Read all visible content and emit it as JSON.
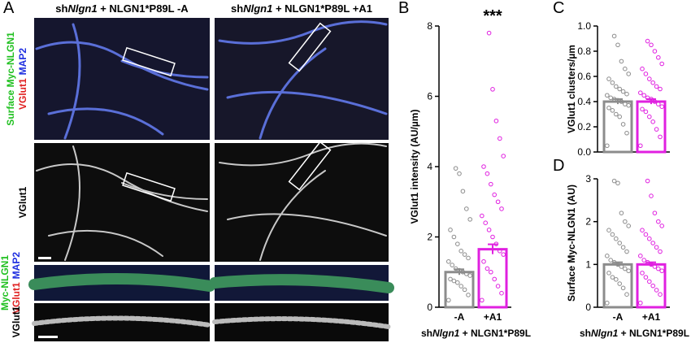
{
  "panels": [
    "A",
    "B",
    "C",
    "D"
  ],
  "column_headers": [
    {
      "prefix": "sh",
      "gene": "Nlgn1",
      "suffix": " + NLGN1*P89L -A"
    },
    {
      "prefix": "sh",
      "gene": "Nlgn1",
      "suffix": " + NLGN1*P89L +A1"
    }
  ],
  "row_labels": [
    [
      "Surface Myc-NLGN1",
      "VGlut1",
      "MAP2"
    ],
    [
      "VGlut1"
    ],
    [
      "Myc-NLGN1",
      "VGlut1",
      "MAP2"
    ],
    [
      "VGlut1"
    ]
  ],
  "chart_data": [
    {
      "type": "bar",
      "y_label": "VGlut1 intensity (AU/µm)",
      "annotation": "***",
      "categories": [
        "-A",
        "+A1"
      ],
      "x_label": {
        "prefix": "sh",
        "gene": "Nlgn1",
        "suffix": " + NLGN1*P89L"
      },
      "values": [
        1.0,
        1.65
      ],
      "errors": [
        0.08,
        0.14
      ],
      "colors": [
        "#8c8c8c",
        "#e020e0"
      ],
      "points": [
        [
          0.2,
          0.35,
          0.5,
          0.6,
          0.7,
          0.75,
          0.8,
          0.9,
          0.95,
          1.0,
          1.05,
          1.1,
          1.2,
          1.3,
          1.4,
          1.5,
          1.6,
          1.8,
          2.0,
          2.2,
          2.5,
          2.8,
          3.3,
          3.8,
          3.95
        ],
        [
          0.2,
          0.4,
          0.6,
          0.8,
          1.0,
          1.1,
          1.3,
          1.5,
          1.6,
          1.8,
          2.0,
          2.2,
          2.4,
          2.6,
          2.8,
          3.0,
          3.2,
          3.5,
          3.8,
          4.0,
          4.3,
          4.8,
          5.3,
          6.2,
          7.8
        ]
      ],
      "ylim": [
        0,
        8
      ],
      "yticks": [
        0,
        2,
        4,
        6,
        8
      ]
    },
    {
      "type": "bar",
      "y_label": "VGlut1 clusters/µm",
      "values": [
        0.4,
        0.4
      ],
      "errors": [
        0.02,
        0.02
      ],
      "colors": [
        "#8c8c8c",
        "#e020e0"
      ],
      "points": [
        [
          0.05,
          0.15,
          0.22,
          0.28,
          0.3,
          0.33,
          0.35,
          0.37,
          0.38,
          0.4,
          0.41,
          0.42,
          0.43,
          0.45,
          0.46,
          0.48,
          0.5,
          0.52,
          0.55,
          0.58,
          0.62,
          0.66,
          0.72,
          0.85,
          0.92
        ],
        [
          0.05,
          0.12,
          0.18,
          0.24,
          0.28,
          0.32,
          0.34,
          0.36,
          0.38,
          0.4,
          0.42,
          0.43,
          0.45,
          0.47,
          0.5,
          0.52,
          0.55,
          0.58,
          0.62,
          0.66,
          0.7,
          0.75,
          0.8,
          0.85,
          0.88
        ]
      ],
      "ylim": [
        0,
        1
      ],
      "yticks": [
        {
          "value": 0,
          "label": "0.0"
        },
        0.2,
        0.4,
        0.6,
        0.8,
        {
          "value": 1,
          "label": "1.0"
        }
      ]
    },
    {
      "type": "bar",
      "y_label": "Surface Myc-NLGN1 (AU)",
      "categories": [
        "-A",
        "+A1"
      ],
      "x_label": {
        "prefix": "sh",
        "gene": "Nlgn1",
        "suffix": " + NLGN1*P89L"
      },
      "values": [
        1.0,
        1.0
      ],
      "errors": [
        0.05,
        0.05
      ],
      "colors": [
        "#8c8c8c",
        "#e020e0"
      ],
      "points": [
        [
          0.1,
          0.3,
          0.45,
          0.55,
          0.65,
          0.7,
          0.8,
          0.85,
          0.9,
          0.95,
          1.0,
          1.05,
          1.1,
          1.2,
          1.3,
          1.4,
          1.5,
          1.6,
          1.7,
          1.8,
          1.9,
          2.0,
          2.2,
          2.9,
          2.95
        ],
        [
          0.1,
          0.3,
          0.4,
          0.5,
          0.6,
          0.7,
          0.8,
          0.85,
          0.9,
          0.95,
          1.0,
          1.05,
          1.1,
          1.2,
          1.3,
          1.4,
          1.5,
          1.6,
          1.7,
          1.8,
          1.9,
          2.0,
          2.2,
          2.6,
          2.95
        ]
      ],
      "ylim": [
        0,
        3
      ],
      "yticks": [
        0,
        1,
        2,
        3
      ]
    }
  ]
}
